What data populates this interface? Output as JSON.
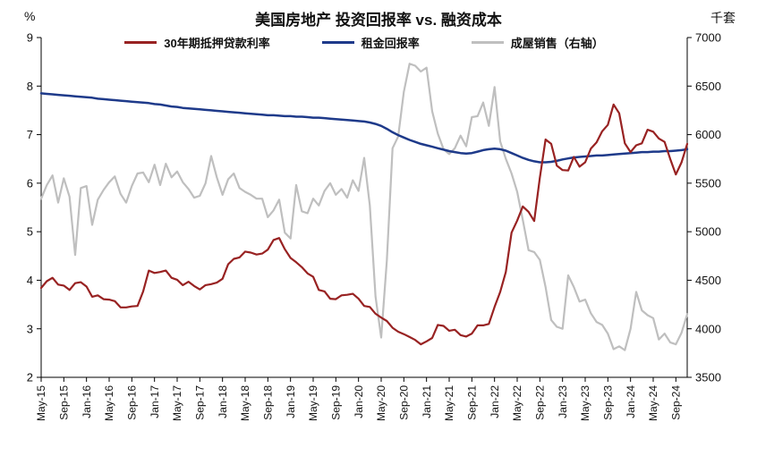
{
  "chart_data": {
    "type": "line",
    "title": "美国房地产 投资回报率 vs. 融资成本",
    "legend_position": "top",
    "grid": false,
    "left_axis": {
      "unit": "%",
      "min": 2,
      "max": 9,
      "ticks": [
        2,
        3,
        4,
        5,
        6,
        7,
        8,
        9
      ]
    },
    "right_axis": {
      "unit": "千套",
      "min": 3500,
      "max": 7000,
      "ticks": [
        3500,
        4000,
        4500,
        5000,
        5500,
        6000,
        6500,
        7000
      ]
    },
    "x_start": "May-15",
    "x_end": "Nov-24",
    "x_frequency": "monthly",
    "x_tick_step": 4,
    "x_tick_labels": [
      "May-15",
      "Sep-15",
      "Jan-16",
      "May-16",
      "Sep-16",
      "Jan-17",
      "May-17",
      "Sep-17",
      "Jan-18",
      "May-18",
      "Sep-18",
      "Jan-19",
      "May-19",
      "Sep-19",
      "Jan-20",
      "May-20",
      "Sep-20",
      "Jan-21",
      "May-21",
      "Sep-21",
      "Jan-22",
      "May-22",
      "Sep-22",
      "Jan-23",
      "May-23",
      "Sep-23",
      "Jan-24",
      "May-24",
      "Sep-24"
    ],
    "series": [
      {
        "name": "30年期抵押贷款利率",
        "axis": "left",
        "color": "#982222",
        "width": 2.2,
        "values": [
          3.84,
          3.98,
          4.05,
          3.91,
          3.89,
          3.8,
          3.94,
          3.96,
          3.87,
          3.66,
          3.69,
          3.61,
          3.6,
          3.57,
          3.44,
          3.44,
          3.46,
          3.47,
          3.77,
          4.2,
          4.15,
          4.17,
          4.2,
          4.05,
          4.01,
          3.9,
          3.97,
          3.88,
          3.81,
          3.9,
          3.92,
          3.95,
          4.03,
          4.33,
          4.44,
          4.47,
          4.59,
          4.57,
          4.53,
          4.55,
          4.63,
          4.83,
          4.87,
          4.64,
          4.46,
          4.37,
          4.27,
          4.14,
          4.07,
          3.8,
          3.77,
          3.62,
          3.61,
          3.69,
          3.7,
          3.72,
          3.62,
          3.47,
          3.45,
          3.31,
          3.23,
          3.16,
          3.02,
          2.94,
          2.89,
          2.83,
          2.77,
          2.68,
          2.74,
          2.81,
          3.08,
          3.06,
          2.96,
          2.98,
          2.87,
          2.84,
          2.9,
          3.07,
          3.07,
          3.1,
          3.45,
          3.76,
          4.17,
          4.98,
          5.23,
          5.52,
          5.41,
          5.22,
          6.11,
          6.9,
          6.81,
          6.36,
          6.27,
          6.26,
          6.54,
          6.34,
          6.43,
          6.71,
          6.84,
          7.07,
          7.2,
          7.62,
          7.44,
          6.82,
          6.64,
          6.78,
          6.82,
          7.1,
          7.06,
          6.92,
          6.85,
          6.5,
          6.18,
          6.43,
          6.81
        ]
      },
      {
        "name": "租金回报率",
        "axis": "left",
        "color": "#1e3a8a",
        "width": 2.5,
        "values": [
          7.85,
          7.84,
          7.83,
          7.82,
          7.81,
          7.8,
          7.79,
          7.78,
          7.77,
          7.76,
          7.74,
          7.73,
          7.72,
          7.71,
          7.7,
          7.69,
          7.68,
          7.67,
          7.66,
          7.65,
          7.63,
          7.62,
          7.6,
          7.58,
          7.57,
          7.55,
          7.54,
          7.53,
          7.52,
          7.51,
          7.5,
          7.49,
          7.48,
          7.47,
          7.46,
          7.45,
          7.44,
          7.43,
          7.42,
          7.41,
          7.4,
          7.4,
          7.39,
          7.38,
          7.38,
          7.37,
          7.37,
          7.36,
          7.35,
          7.35,
          7.34,
          7.33,
          7.32,
          7.31,
          7.3,
          7.29,
          7.28,
          7.27,
          7.25,
          7.22,
          7.18,
          7.12,
          7.05,
          6.99,
          6.94,
          6.89,
          6.85,
          6.81,
          6.78,
          6.75,
          6.72,
          6.69,
          6.66,
          6.64,
          6.62,
          6.61,
          6.62,
          6.65,
          6.68,
          6.7,
          6.71,
          6.7,
          6.67,
          6.62,
          6.57,
          6.52,
          6.48,
          6.45,
          6.43,
          6.43,
          6.44,
          6.46,
          6.49,
          6.51,
          6.53,
          6.54,
          6.55,
          6.56,
          6.57,
          6.57,
          6.58,
          6.59,
          6.6,
          6.61,
          6.62,
          6.63,
          6.64,
          6.64,
          6.65,
          6.65,
          6.66,
          6.66,
          6.67,
          6.68,
          6.7
        ]
      },
      {
        "name": "成屋销售（右轴）",
        "axis": "right",
        "color": "#bfbfbf",
        "width": 2.2,
        "values": [
          5340,
          5480,
          5580,
          5300,
          5550,
          5360,
          4760,
          5450,
          5470,
          5070,
          5330,
          5430,
          5510,
          5570,
          5390,
          5300,
          5470,
          5600,
          5610,
          5510,
          5690,
          5480,
          5700,
          5560,
          5620,
          5510,
          5440,
          5350,
          5370,
          5500,
          5780,
          5560,
          5380,
          5540,
          5600,
          5450,
          5410,
          5380,
          5340,
          5340,
          5150,
          5220,
          5330,
          4990,
          4930,
          5480,
          5210,
          5190,
          5340,
          5270,
          5420,
          5500,
          5380,
          5440,
          5350,
          5530,
          5420,
          5760,
          5270,
          4330,
          3910,
          4700,
          5860,
          5980,
          6440,
          6730,
          6710,
          6650,
          6690,
          6240,
          6010,
          5850,
          5800,
          5860,
          5990,
          5880,
          6180,
          6190,
          6330,
          6090,
          6490,
          5930,
          5750,
          5600,
          5410,
          5120,
          4810,
          4790,
          4710,
          4430,
          4090,
          4020,
          4000,
          4550,
          4430,
          4280,
          4300,
          4160,
          4070,
          4040,
          3950,
          3790,
          3820,
          3780,
          4000,
          4380,
          4190,
          4140,
          4110,
          3890,
          3950,
          3860,
          3840,
          3960,
          4150
        ]
      }
    ]
  }
}
